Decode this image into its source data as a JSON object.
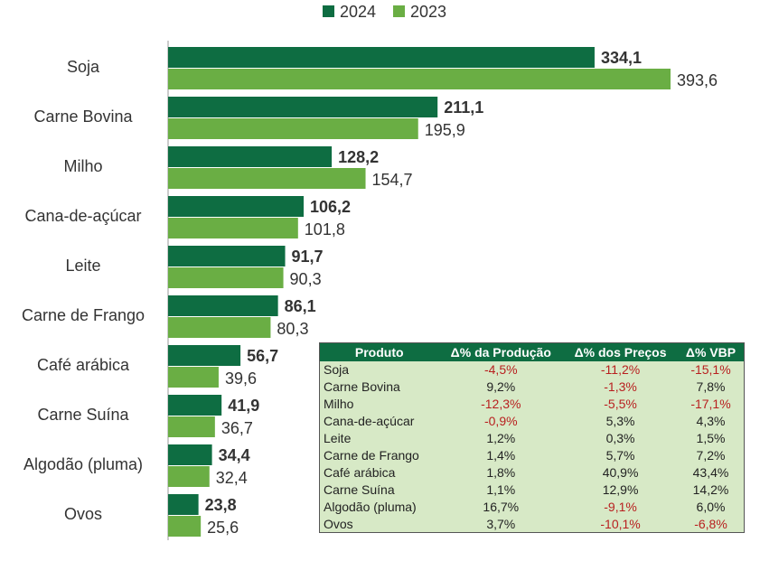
{
  "chart_data": {
    "type": "bar",
    "orientation": "horizontal",
    "categories": [
      "Soja",
      "Carne Bovina",
      "Milho",
      "Cana-de-açúcar",
      "Leite",
      "Carne de Frango",
      "Café arábica",
      "Carne Suína",
      "Algodão (pluma)",
      "Ovos"
    ],
    "series": [
      {
        "name": "2024",
        "color": "#0e6d42",
        "values": [
          334.1,
          211.1,
          128.2,
          106.2,
          91.7,
          86.1,
          56.7,
          41.9,
          34.4,
          23.8
        ],
        "labels": [
          "334,1",
          "211,1",
          "128,2",
          "106,2",
          "91,7",
          "86,1",
          "56,7",
          "41,9",
          "34,4",
          "23,8"
        ]
      },
      {
        "name": "2023",
        "color": "#6aae44",
        "values": [
          393.6,
          195.9,
          154.7,
          101.8,
          90.3,
          80.3,
          39.6,
          36.7,
          32.4,
          25.6
        ],
        "labels": [
          "393,6",
          "195,9",
          "154,7",
          "101,8",
          "90,3",
          "80,3",
          "39,6",
          "36,7",
          "32,4",
          "25,6"
        ]
      }
    ],
    "xlim": [
      0,
      400
    ],
    "legend_position": "top",
    "grid": false
  },
  "table": {
    "headers": [
      "Produto",
      "Δ% da Produção",
      "Δ% dos Preços",
      "Δ% VBP"
    ],
    "rows": [
      [
        "Soja",
        "-4,5%",
        "-11,2%",
        "-15,1%"
      ],
      [
        "Carne Bovina",
        "9,2%",
        "-1,3%",
        "7,8%"
      ],
      [
        "Milho",
        "-12,3%",
        "-5,5%",
        "-17,1%"
      ],
      [
        "Cana-de-açúcar",
        "-0,9%",
        "5,3%",
        "4,3%"
      ],
      [
        "Leite",
        "1,2%",
        "0,3%",
        "1,5%"
      ],
      [
        "Carne de Frango",
        "1,4%",
        "5,7%",
        "7,2%"
      ],
      [
        "Café arábica",
        "1,8%",
        "40,9%",
        "43,4%"
      ],
      [
        "Carne Suína",
        "1,1%",
        "12,9%",
        "14,2%"
      ],
      [
        "Algodão (pluma)",
        "16,7%",
        "-9,1%",
        "6,0%"
      ],
      [
        "Ovos",
        "3,7%",
        "-10,1%",
        "-6,8%"
      ]
    ]
  }
}
